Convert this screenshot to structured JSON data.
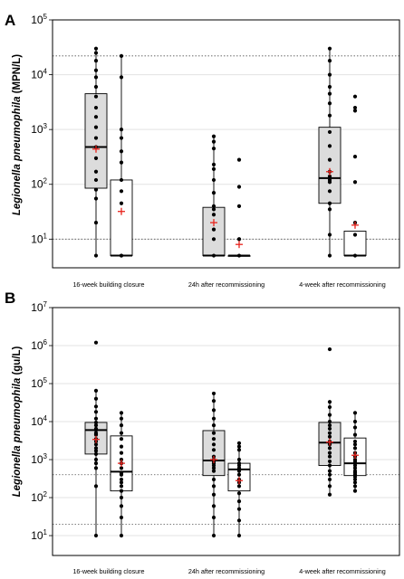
{
  "panels": [
    {
      "letter": "A",
      "ylabel_italic": "Legionella pneumophila",
      "ylabel_unit": " (MPN/L)",
      "categories": [
        "16-week building closure",
        "24h after recommissioning",
        "4-week after recommissioning"
      ],
      "y_scale": "log",
      "ylim": [
        3,
        100000
      ],
      "y_ticks": [
        {
          "base": "10",
          "exp": "1"
        },
        {
          "base": "10",
          "exp": "2"
        },
        {
          "base": "10",
          "exp": "3"
        },
        {
          "base": "10",
          "exp": "4"
        },
        {
          "base": "10",
          "exp": "5"
        }
      ],
      "reference_lines": [
        10,
        22000
      ]
    },
    {
      "letter": "B",
      "ylabel_italic": "Legionella pneumophila",
      "ylabel_unit": " (gu/L)",
      "categories": [
        "16-week building closure",
        "24h after recommissioning",
        "4-week after recommissioning"
      ],
      "y_scale": "log",
      "ylim": [
        3,
        10000000
      ],
      "y_ticks": [
        {
          "base": "10",
          "exp": "1"
        },
        {
          "base": "10",
          "exp": "2"
        },
        {
          "base": "10",
          "exp": "3"
        },
        {
          "base": "10",
          "exp": "4"
        },
        {
          "base": "10",
          "exp": "5"
        },
        {
          "base": "10",
          "exp": "6"
        },
        {
          "base": "10",
          "exp": "7"
        }
      ],
      "reference_lines": [
        20,
        400
      ]
    }
  ],
  "chart_data": [
    {
      "type": "box",
      "panel": "A",
      "categories": [
        "16-week building closure",
        "24h after recommissioning",
        "4-week after recommissioning"
      ],
      "ylabel": "Legionella pneumophila (MPN/L)",
      "y_scale": "log",
      "ylim": [
        3,
        100000
      ],
      "grid": true,
      "reference_lines": [
        10,
        22000
      ],
      "boxes": [
        {
          "category": 0,
          "fill": "#dcdcdc",
          "min": 5,
          "q1": 85,
          "median": 480,
          "q3": 4500,
          "max": 30000,
          "mean": 440,
          "points": [
            30000,
            25000,
            18000,
            12000,
            9000,
            6000,
            4000,
            2500,
            1700,
            1100,
            700,
            480,
            300,
            170,
            120,
            80,
            55,
            20,
            5
          ]
        },
        {
          "category": 0,
          "fill": "#ffffff",
          "min": 5,
          "q1": 5,
          "median": 5,
          "q3": 120,
          "max": 22000,
          "mean": 32,
          "points": [
            22000,
            9000,
            1000,
            700,
            400,
            250,
            120,
            75,
            45,
            5,
            5
          ]
        },
        {
          "category": 1,
          "fill": "#dcdcdc",
          "min": 5,
          "q1": 5,
          "median": 5,
          "q3": 38,
          "max": 750,
          "mean": 20,
          "points": [
            750,
            600,
            450,
            230,
            190,
            120,
            70,
            40,
            35,
            28,
            15,
            10,
            5
          ]
        },
        {
          "category": 1,
          "fill": "#ffffff",
          "min": 5,
          "q1": 5,
          "median": 5,
          "q3": 5,
          "max": 5,
          "mean": 8,
          "points": [
            280,
            90,
            40,
            10,
            10,
            5
          ]
        },
        {
          "category": 2,
          "fill": "#dcdcdc",
          "min": 5,
          "q1": 45,
          "median": 130,
          "q3": 1100,
          "max": 30000,
          "mean": 170,
          "points": [
            30000,
            18000,
            10000,
            6000,
            4500,
            3000,
            1800,
            900,
            500,
            280,
            170,
            140,
            120,
            110,
            75,
            45,
            35,
            12,
            5
          ]
        },
        {
          "category": 2,
          "fill": "#ffffff",
          "min": 5,
          "q1": 5,
          "median": 5,
          "q3": 14,
          "max": 14,
          "mean": 18,
          "points": [
            4000,
            2500,
            2200,
            320,
            110,
            20,
            12,
            5
          ]
        }
      ]
    },
    {
      "type": "box",
      "panel": "B",
      "categories": [
        "16-week building closure",
        "24h after recommissioning",
        "4-week after recommissioning"
      ],
      "ylabel": "Legionella pneumophila (gu/L)",
      "y_scale": "log",
      "ylim": [
        3,
        10000000
      ],
      "grid": true,
      "reference_lines": [
        20,
        400
      ],
      "boxes": [
        {
          "category": 0,
          "fill": "#dcdcdc",
          "min": 10,
          "q1": 1400,
          "median": 6000,
          "q3": 9500,
          "max": 65000,
          "mean": 3400,
          "points": [
            1200000,
            65000,
            40000,
            25000,
            18000,
            12000,
            9500,
            8000,
            6500,
            6000,
            5000,
            4500,
            3500,
            3000,
            2500,
            2000,
            1700,
            1400,
            1000,
            800,
            600,
            200,
            10
          ]
        },
        {
          "category": 0,
          "fill": "#ffffff",
          "min": 10,
          "q1": 150,
          "median": 480,
          "q3": 4200,
          "max": 17000,
          "mean": 800,
          "points": [
            17000,
            12000,
            8000,
            5000,
            3500,
            2200,
            1500,
            1000,
            800,
            600,
            450,
            400,
            300,
            250,
            200,
            150,
            100,
            60,
            30,
            10
          ]
        },
        {
          "category": 1,
          "fill": "#dcdcdc",
          "min": 10,
          "q1": 380,
          "median": 950,
          "q3": 5800,
          "max": 55000,
          "mean": 1000,
          "points": [
            55000,
            35000,
            20000,
            12000,
            8000,
            5000,
            3500,
            2500,
            1800,
            1200,
            1000,
            900,
            800,
            700,
            600,
            500,
            300,
            200,
            120,
            60,
            30,
            10
          ]
        },
        {
          "category": 1,
          "fill": "#ffffff",
          "min": 10,
          "q1": 150,
          "median": 550,
          "q3": 800,
          "max": 2700,
          "mean": 280,
          "points": [
            2700,
            2200,
            1800,
            1000,
            800,
            700,
            600,
            500,
            400,
            300,
            250,
            200,
            130,
            80,
            50,
            25,
            10
          ]
        },
        {
          "category": 2,
          "fill": "#dcdcdc",
          "min": 120,
          "q1": 700,
          "median": 2800,
          "q3": 9500,
          "max": 33000,
          "mean": 2900,
          "points": [
            800000,
            33000,
            24000,
            15000,
            10000,
            8000,
            6500,
            5000,
            4000,
            3000,
            2800,
            2500,
            2000,
            1500,
            1200,
            900,
            700,
            500,
            400,
            300,
            200,
            120
          ]
        },
        {
          "category": 2,
          "fill": "#ffffff",
          "min": 150,
          "q1": 380,
          "median": 800,
          "q3": 3700,
          "max": 17000,
          "mean": 1300,
          "points": [
            17000,
            10000,
            7000,
            4500,
            3000,
            2500,
            2000,
            1500,
            1200,
            1000,
            900,
            800,
            700,
            600,
            500,
            450,
            400,
            350,
            300,
            250,
            200,
            150
          ]
        }
      ]
    }
  ]
}
